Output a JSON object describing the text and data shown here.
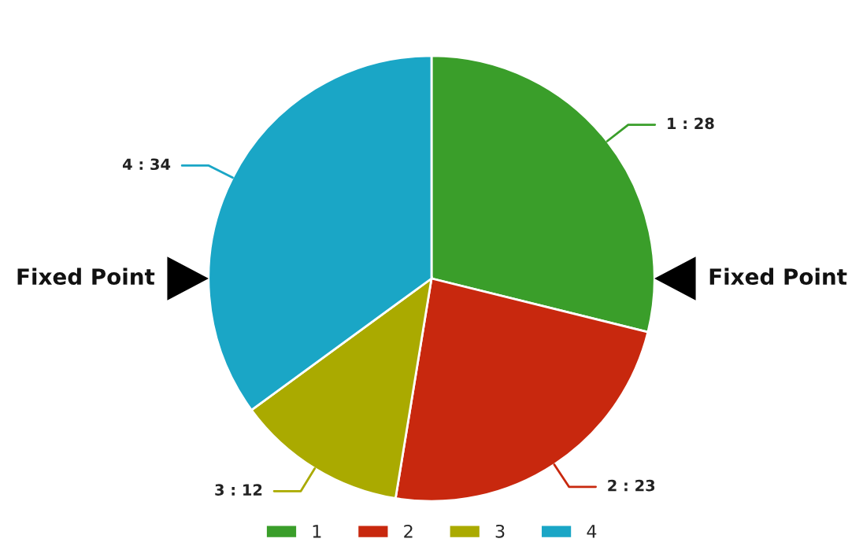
{
  "chart_data": {
    "type": "pie",
    "categories": [
      "1",
      "2",
      "3",
      "4"
    ],
    "values": [
      28,
      23,
      12,
      34
    ],
    "colors": [
      "#3a9e2a",
      "#c8280e",
      "#aaaa00",
      "#1aa6c6"
    ],
    "value_labels": [
      "1 : 28",
      "2 : 23",
      "3 : 12",
      "4 : 34"
    ],
    "annotations": [
      "Fixed Point",
      "Fixed Point"
    ],
    "legend": "bottom"
  }
}
